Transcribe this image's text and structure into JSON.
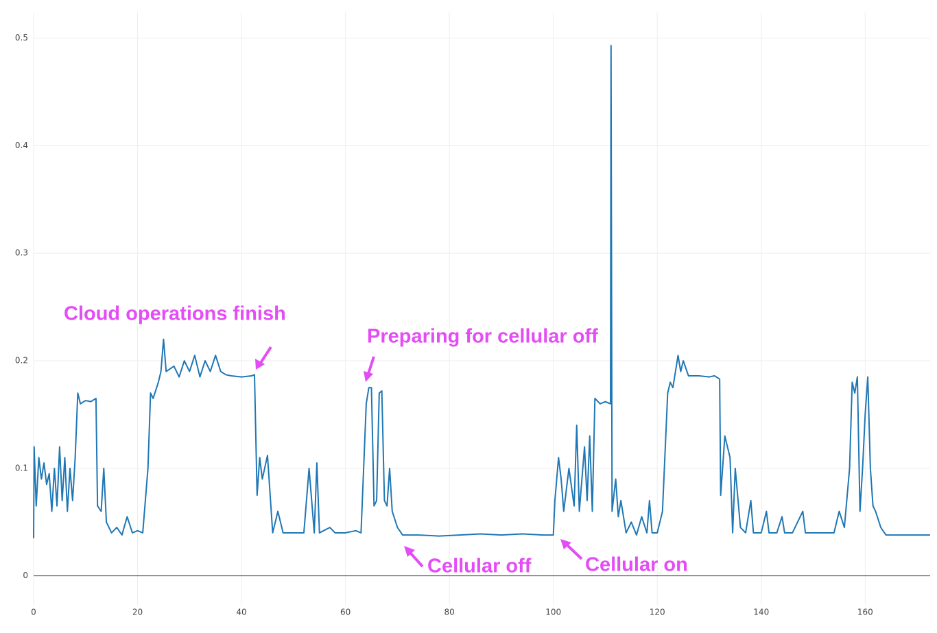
{
  "chart_data": {
    "type": "line",
    "color": "#1f77b4",
    "grid": true,
    "xlim": [
      0,
      172.5
    ],
    "ylim": [
      -0.027,
      0.524
    ],
    "xticks": [
      0,
      20,
      40,
      60,
      80,
      100,
      120,
      140,
      160
    ],
    "yticks": [
      0,
      0.1,
      0.2,
      0.3,
      0.4,
      0.5
    ],
    "annotations": [
      "Cloud operations finish",
      "Preparing for cellular off",
      "Cellular off",
      "Cellular on"
    ],
    "x": [
      0,
      0.1,
      0.5,
      1,
      1.5,
      2,
      2.5,
      3,
      3.5,
      4,
      4.5,
      5,
      5.5,
      6,
      6.5,
      7,
      7.5,
      8,
      8.5,
      9,
      10,
      11,
      12,
      12.3,
      13,
      13.5,
      14,
      15,
      16,
      17,
      18,
      19,
      20,
      21,
      22,
      22.5,
      23,
      24,
      24.5,
      25,
      25.5,
      27,
      28,
      29,
      30,
      31,
      32,
      33,
      34,
      35,
      36,
      37,
      38,
      40,
      42,
      42.5,
      43,
      43.5,
      44,
      45,
      46,
      47,
      48,
      50,
      52,
      53,
      54,
      54.5,
      55,
      57,
      58,
      60,
      62,
      63,
      64,
      64.5,
      65,
      65.5,
      66,
      66.5,
      67,
      67.5,
      68,
      68.5,
      69,
      70,
      71,
      74,
      78,
      82,
      86,
      90,
      94,
      98,
      100,
      100.3,
      101,
      101.5,
      102,
      103,
      104,
      104.5,
      105,
      106,
      106.5,
      107,
      107.5,
      108,
      109,
      110,
      111,
      111.1,
      111.3,
      112,
      112.5,
      113,
      114,
      115,
      116,
      117,
      118,
      118.5,
      119,
      120,
      121,
      122,
      122.5,
      123,
      123.5,
      124,
      124.5,
      125,
      126,
      128,
      130,
      131,
      132,
      132.2,
      133,
      134,
      134.5,
      135,
      136,
      137,
      138,
      138.5,
      140,
      141,
      141.5,
      143,
      144,
      144.5,
      146,
      148,
      148.5,
      150,
      152,
      154,
      155,
      156,
      157,
      157.5,
      158,
      158.5,
      159,
      159.5,
      160,
      160.5,
      161,
      161.5,
      162,
      163,
      164,
      167,
      170,
      172.5
    ],
    "values": [
      0.035,
      0.12,
      0.065,
      0.11,
      0.09,
      0.105,
      0.085,
      0.095,
      0.06,
      0.1,
      0.065,
      0.12,
      0.07,
      0.11,
      0.06,
      0.1,
      0.07,
      0.11,
      0.17,
      0.16,
      0.163,
      0.162,
      0.165,
      0.065,
      0.06,
      0.1,
      0.05,
      0.04,
      0.045,
      0.038,
      0.055,
      0.04,
      0.042,
      0.04,
      0.1,
      0.17,
      0.165,
      0.18,
      0.19,
      0.22,
      0.19,
      0.195,
      0.185,
      0.2,
      0.19,
      0.205,
      0.185,
      0.2,
      0.19,
      0.205,
      0.19,
      0.187,
      0.186,
      0.185,
      0.186,
      0.187,
      0.075,
      0.11,
      0.09,
      0.112,
      0.04,
      0.06,
      0.04,
      0.04,
      0.04,
      0.1,
      0.04,
      0.105,
      0.04,
      0.045,
      0.04,
      0.04,
      0.042,
      0.04,
      0.16,
      0.175,
      0.175,
      0.065,
      0.07,
      0.17,
      0.172,
      0.07,
      0.065,
      0.1,
      0.06,
      0.045,
      0.038,
      0.038,
      0.037,
      0.038,
      0.039,
      0.038,
      0.039,
      0.038,
      0.038,
      0.07,
      0.11,
      0.09,
      0.06,
      0.1,
      0.065,
      0.14,
      0.06,
      0.12,
      0.07,
      0.13,
      0.06,
      0.165,
      0.16,
      0.162,
      0.16,
      0.493,
      0.06,
      0.09,
      0.055,
      0.07,
      0.04,
      0.05,
      0.038,
      0.055,
      0.04,
      0.07,
      0.04,
      0.04,
      0.06,
      0.17,
      0.18,
      0.175,
      0.19,
      0.205,
      0.19,
      0.2,
      0.186,
      0.186,
      0.185,
      0.186,
      0.183,
      0.075,
      0.13,
      0.11,
      0.04,
      0.1,
      0.045,
      0.04,
      0.07,
      0.04,
      0.04,
      0.06,
      0.04,
      0.04,
      0.055,
      0.04,
      0.04,
      0.06,
      0.04,
      0.04,
      0.04,
      0.04,
      0.06,
      0.045,
      0.1,
      0.18,
      0.17,
      0.185,
      0.06,
      0.1,
      0.15,
      0.185,
      0.1,
      0.065,
      0.06,
      0.045,
      0.038,
      0.038,
      0.038,
      0.038
    ]
  }
}
